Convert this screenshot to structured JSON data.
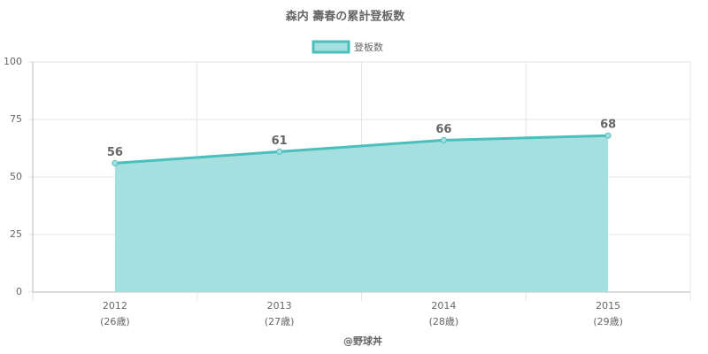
{
  "chart_data": {
    "type": "area",
    "title": "森内 壽春の累計登板数",
    "categories": [
      "2012",
      "2013",
      "2014",
      "2015"
    ],
    "category_sublabels": [
      "(26歳)",
      "(27歳)",
      "(28歳)",
      "(29歳)"
    ],
    "x_label": "@野球丼",
    "series": [
      {
        "name": "登板数",
        "color": "#4bbfbc",
        "fill_color": "#a6dfdf",
        "values": [
          56,
          61,
          66,
          68
        ]
      }
    ],
    "ylim": [
      0,
      100
    ],
    "yticks": [
      0,
      25,
      50,
      75,
      100
    ],
    "grid": true,
    "legend": "top"
  }
}
